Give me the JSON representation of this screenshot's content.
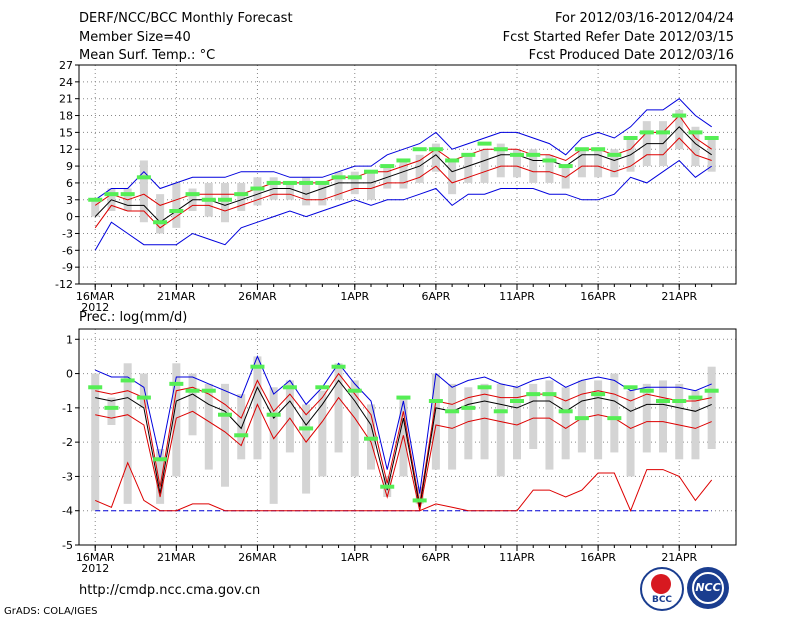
{
  "header": {
    "title": "DERF/NCC/BCC Monthly Forecast",
    "member_size": "Member Size=40",
    "variable": "Mean Surf. Temp.: °C",
    "period": "For 2012/03/16-2012/04/24",
    "started": "Fcst Started Refer Date 2012/03/15",
    "produced": "Fcst Produced Date 2012/03/16"
  },
  "footer": {
    "url": "http://cmdp.ncc.cma.gov.cn",
    "grads": "GrADS: COLA/IGES",
    "logo_bcc": "BCC",
    "logo_ncc": "NCC"
  },
  "colors": {
    "extremes": "#0000dd",
    "ensemble_mean": "#000000",
    "spread": "#dd0000",
    "observed": "#55ee55",
    "box": "#d4d4d4",
    "lower_bound": "#0000dd"
  },
  "chart_data": [
    {
      "type": "line",
      "title": "Mean Surf. Temp.: °C",
      "x_tick_labels": [
        "16MAR",
        "21MAR",
        "26MAR",
        "1APR",
        "6APR",
        "11APR",
        "16APR",
        "21APR"
      ],
      "x_tick_days": [
        0,
        5,
        10,
        16,
        21,
        26,
        31,
        36
      ],
      "year_label": "2012",
      "y_ticks": [
        -12,
        -9,
        -6,
        -3,
        0,
        3,
        6,
        9,
        12,
        15,
        18,
        21,
        24,
        27
      ],
      "ylim": [
        -12,
        27
      ],
      "xlim": [
        -1,
        39.5
      ],
      "days": [
        0,
        1,
        2,
        3,
        4,
        5,
        6,
        7,
        8,
        9,
        10,
        11,
        12,
        13,
        14,
        15,
        16,
        17,
        18,
        19,
        20,
        21,
        22,
        23,
        24,
        25,
        26,
        27,
        28,
        29,
        30,
        31,
        32,
        33,
        34,
        35,
        36,
        37,
        38
      ],
      "series": [
        {
          "name": "max",
          "color": "#0000dd",
          "values": [
            3,
            5,
            5,
            8,
            5,
            6,
            7,
            7,
            7,
            8,
            8,
            8,
            7,
            7,
            7,
            8,
            9,
            9,
            11,
            12,
            13,
            15,
            12,
            13,
            14,
            15,
            15,
            14,
            13,
            11,
            14,
            15,
            14,
            16,
            19,
            19,
            21,
            18,
            16
          ]
        },
        {
          "name": "upper",
          "color": "#dd0000",
          "values": [
            2,
            4,
            3,
            4,
            2,
            3,
            4,
            4,
            4,
            4,
            5,
            6,
            6,
            6,
            6,
            7,
            7,
            8,
            8,
            9,
            10,
            12,
            10,
            11,
            12,
            12,
            12,
            11,
            11,
            10,
            12,
            12,
            11,
            12,
            15,
            15,
            18,
            14,
            12
          ]
        },
        {
          "name": "mean",
          "color": "#000000",
          "values": [
            0,
            3,
            2,
            2,
            -1,
            1,
            3,
            3,
            2,
            3,
            4,
            5,
            5,
            4,
            5,
            6,
            6,
            6,
            7,
            8,
            9,
            11,
            8,
            9,
            10,
            11,
            11,
            10,
            10,
            9,
            11,
            11,
            10,
            11,
            13,
            13,
            16,
            13,
            11
          ]
        },
        {
          "name": "lower",
          "color": "#dd0000",
          "values": [
            -2,
            2,
            1,
            1,
            -2,
            0,
            2,
            2,
            1,
            2,
            3,
            4,
            4,
            3,
            3,
            4,
            5,
            5,
            6,
            6,
            7,
            9,
            6,
            7,
            8,
            9,
            9,
            8,
            8,
            7,
            9,
            9,
            8,
            9,
            11,
            11,
            14,
            11,
            10
          ]
        },
        {
          "name": "min",
          "color": "#0000dd",
          "values": [
            -6,
            -1,
            -3,
            -5,
            -5,
            -5,
            -3,
            -4,
            -5,
            -2,
            -1,
            0,
            1,
            0,
            1,
            2,
            3,
            2,
            3,
            3,
            4,
            5,
            2,
            4,
            4,
            5,
            5,
            5,
            4,
            4,
            3,
            3,
            4,
            7,
            6,
            8,
            10,
            7,
            9
          ]
        }
      ],
      "box_low": [
        0,
        1,
        1,
        -1,
        -3,
        -2,
        1,
        0,
        -1,
        1,
        2,
        3,
        3,
        2,
        2,
        3,
        4,
        3,
        5,
        5,
        6,
        8,
        4,
        6,
        6,
        7,
        7,
        6,
        6,
        5,
        7,
        7,
        7,
        8,
        9,
        9,
        12,
        9,
        8
      ],
      "box_high": [
        3,
        5,
        5,
        10,
        4,
        6,
        5,
        6,
        6,
        6,
        7,
        7,
        6,
        7,
        6,
        8,
        8,
        8,
        9,
        10,
        11,
        13,
        10,
        11,
        12,
        13,
        12,
        12,
        11,
        9,
        12,
        12,
        12,
        14,
        17,
        17,
        19,
        16,
        14
      ],
      "observed": [
        3,
        4,
        4,
        7,
        -1,
        1,
        4,
        3,
        3,
        4,
        5,
        6,
        6,
        6,
        6,
        7,
        7,
        8,
        9,
        10,
        12,
        12,
        10,
        11,
        13,
        12,
        11,
        11,
        10,
        9,
        12,
        12,
        11,
        14,
        15,
        15,
        18,
        15,
        14
      ]
    },
    {
      "type": "line",
      "title": "Prec.: log(mm/d)",
      "x_tick_labels": [
        "16MAR",
        "21MAR",
        "26MAR",
        "1APR",
        "6APR",
        "11APR",
        "16APR",
        "21APR"
      ],
      "x_tick_days": [
        0,
        5,
        10,
        16,
        21,
        26,
        31,
        36
      ],
      "year_label": "2012",
      "y_ticks": [
        -5,
        -4,
        -3,
        -2,
        -1,
        0,
        1
      ],
      "ylim": [
        -5,
        1.3
      ],
      "xlim": [
        -1,
        39.5
      ],
      "days": [
        0,
        1,
        2,
        3,
        4,
        5,
        6,
        7,
        8,
        9,
        10,
        11,
        12,
        13,
        14,
        15,
        16,
        17,
        18,
        19,
        20,
        21,
        22,
        23,
        24,
        25,
        26,
        27,
        28,
        29,
        30,
        31,
        32,
        33,
        34,
        35,
        36,
        37,
        38
      ],
      "series": [
        {
          "name": "max",
          "color": "#0000dd",
          "values": [
            0.1,
            -0.1,
            -0.1,
            -0.4,
            -2.5,
            -0.1,
            -0.1,
            -0.3,
            -0.5,
            -0.7,
            0.5,
            -0.6,
            -0.2,
            -0.9,
            -0.4,
            0.3,
            -0.3,
            -0.8,
            -2.8,
            -0.8,
            -3.5,
            0,
            -0.4,
            -0.2,
            -0.1,
            -0.3,
            -0.4,
            -0.2,
            -0.1,
            -0.4,
            -0.2,
            -0.1,
            -0.2,
            -0.5,
            -0.4,
            -0.4,
            -0.4,
            -0.5,
            -0.3
          ]
        },
        {
          "name": "upper",
          "color": "#dd0000",
          "values": [
            -0.5,
            -0.6,
            -0.5,
            -0.7,
            -3.3,
            -0.5,
            -0.4,
            -0.6,
            -0.9,
            -1.3,
            -0.2,
            -1.1,
            -0.6,
            -1.2,
            -0.7,
            0,
            -0.6,
            -1.2,
            -3.2,
            -1.1,
            -3.8,
            -0.8,
            -0.9,
            -0.7,
            -0.6,
            -0.7,
            -0.7,
            -0.6,
            -0.6,
            -0.8,
            -0.6,
            -0.5,
            -0.6,
            -0.8,
            -0.6,
            -0.7,
            -0.8,
            -0.8,
            -0.7
          ]
        },
        {
          "name": "mean",
          "color": "#000000",
          "values": [
            -0.7,
            -0.8,
            -0.7,
            -1,
            -3.5,
            -0.8,
            -0.6,
            -0.9,
            -1.1,
            -1.6,
            -0.4,
            -1.3,
            -0.8,
            -1.5,
            -0.9,
            -0.2,
            -0.8,
            -1.5,
            -3.4,
            -1.3,
            -3.9,
            -1,
            -1.1,
            -0.9,
            -0.8,
            -0.9,
            -1,
            -0.8,
            -0.8,
            -1.1,
            -0.8,
            -0.7,
            -0.8,
            -1.1,
            -0.9,
            -0.9,
            -1,
            -1.1,
            -0.9
          ]
        },
        {
          "name": "lower",
          "color": "#dd0000",
          "values": [
            -1.2,
            -1.3,
            -1.2,
            -1.5,
            -3.6,
            -1.3,
            -1.1,
            -1.4,
            -1.7,
            -2.1,
            -0.9,
            -1.9,
            -1.3,
            -2,
            -1.4,
            -0.7,
            -1.3,
            -2,
            -3.6,
            -1.8,
            -4,
            -1.5,
            -1.6,
            -1.4,
            -1.3,
            -1.4,
            -1.5,
            -1.3,
            -1.3,
            -1.6,
            -1.3,
            -1.2,
            -1.3,
            -1.6,
            -1.4,
            -1.4,
            -1.5,
            -1.6,
            -1.4
          ]
        },
        {
          "name": "min",
          "color": "#dd0000",
          "values": [
            -3.7,
            -3.9,
            -2.6,
            -3.7,
            -4,
            -4,
            -3.8,
            -3.8,
            -4,
            -4,
            -4,
            -4,
            -4,
            -4,
            -4,
            -4,
            -4,
            -4,
            -4,
            -4,
            -4,
            -3.8,
            -3.9,
            -4,
            -4,
            -4,
            -4,
            -3.4,
            -3.4,
            -3.6,
            -3.4,
            -2.9,
            -2.9,
            -4,
            -2.8,
            -2.8,
            -3,
            -3.7,
            -3.1
          ]
        }
      ],
      "lower_bound": -4,
      "box_low": [
        -4,
        -1.5,
        -3.8,
        -1,
        -3.8,
        -3,
        -1.8,
        -2.8,
        -3.3,
        -2.5,
        -2.5,
        -3.8,
        -2.3,
        -3.5,
        -3,
        -2.3,
        -3,
        -2.8,
        -3.6,
        -3,
        -3.8,
        -2.8,
        -2.8,
        -2.5,
        -2.5,
        -3,
        -2.5,
        -2.2,
        -2.8,
        -2.5,
        -2.3,
        -2.5,
        -2.3,
        -3,
        -2.3,
        -2.3,
        -2.5,
        -2.5,
        -2.2
      ],
      "box_high": [
        0,
        -0.7,
        0.3,
        0,
        -2.2,
        0.3,
        0,
        -0.3,
        -0.3,
        -0.6,
        0.5,
        -0.4,
        -0.2,
        -0.9,
        -0.5,
        0.3,
        -0.2,
        -0.9,
        -3,
        -0.7,
        -3.3,
        0,
        -0.3,
        -0.4,
        -0.3,
        -0.3,
        -0.4,
        -0.3,
        -0.2,
        -0.4,
        -0.2,
        -0.2,
        0,
        -0.5,
        -0.3,
        -0.2,
        -0.3,
        -0.5,
        0.2
      ],
      "observed": [
        -0.4,
        -1,
        -0.2,
        -0.7,
        -2.5,
        -0.3,
        -0.5,
        -0.5,
        -1.2,
        -1.8,
        0.2,
        -1.2,
        -0.4,
        -1.6,
        -0.4,
        0.2,
        -0.5,
        -1.9,
        -3.3,
        -0.7,
        -3.7,
        -0.8,
        -1.1,
        -1,
        -0.4,
        -1.1,
        -0.8,
        -0.6,
        -0.6,
        -1.1,
        -1.3,
        -0.6,
        -1.3,
        -0.4,
        -0.5,
        -0.8,
        -0.8,
        -0.7,
        -0.5
      ]
    }
  ]
}
